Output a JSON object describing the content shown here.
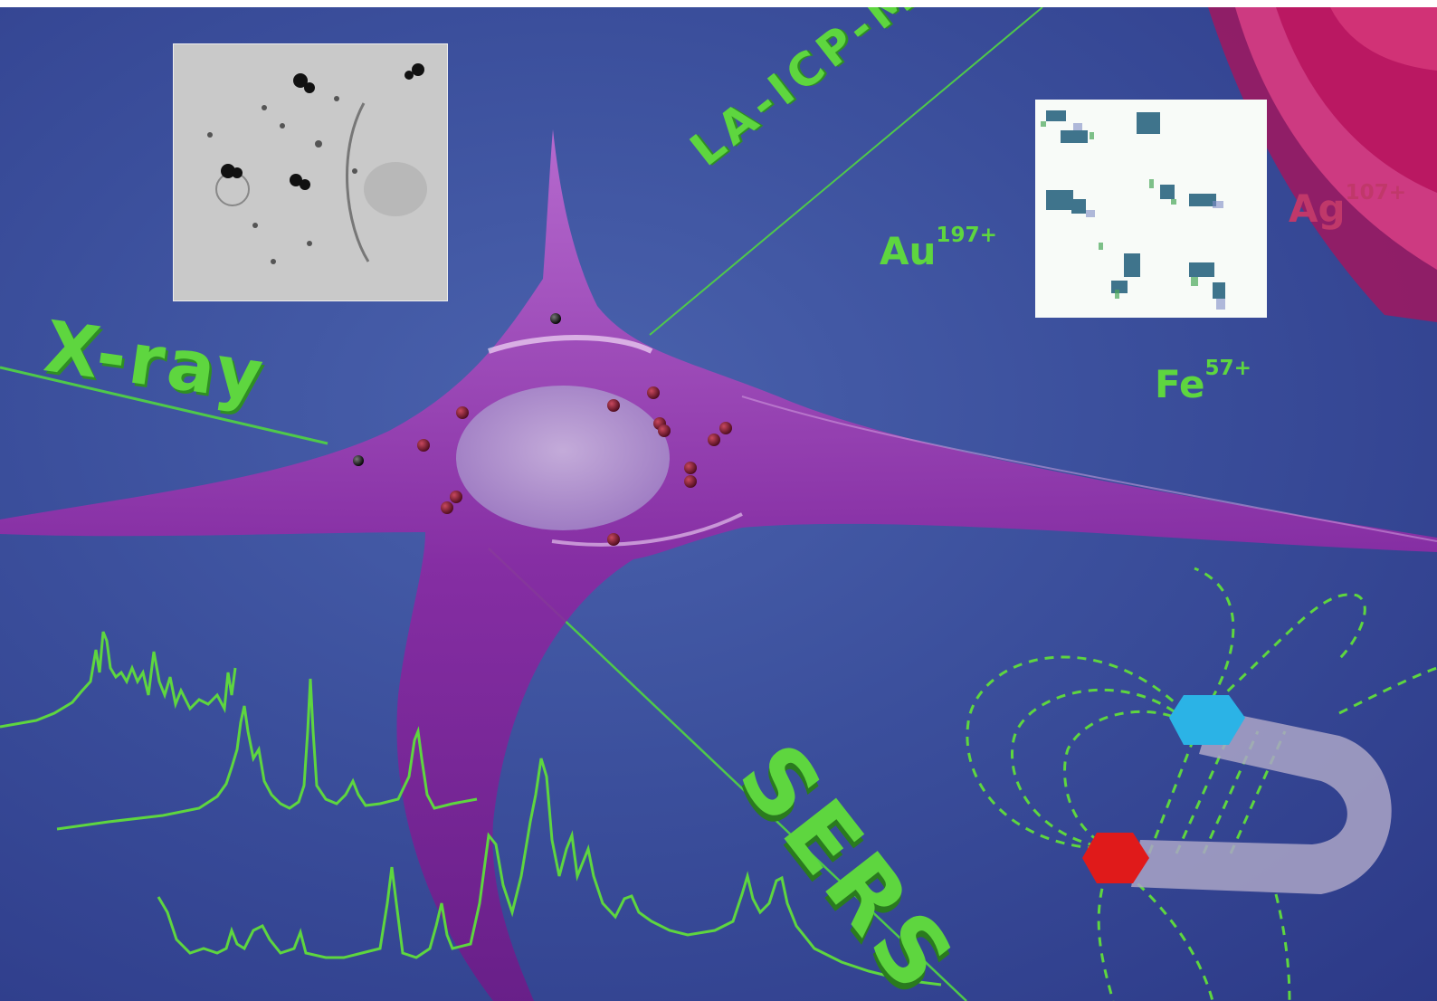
{
  "labels": {
    "xray": "X-ray",
    "laicpms": "LA-ICP-MS",
    "sers": "SERS",
    "au": {
      "element": "Au",
      "mass": "197+"
    },
    "fe": {
      "element": "Fe",
      "mass": "57+"
    },
    "ag": {
      "element": "Ag",
      "mass": "107+"
    }
  },
  "colors": {
    "background": "#3b4f9c",
    "label_green": "#5ed63f",
    "cell_purple": "#8a2aa0",
    "nucleus": "#b69ad0",
    "magnet_north": "#2bb3e6",
    "magnet_south": "#e01a1a",
    "magnet_body": "#a9a3c6",
    "ag_arcs": "#c0196b"
  },
  "illustration": {
    "subject": "cell-with-nanoparticles",
    "em_inset": "electron-microscopy-image",
    "map_inset": "elemental-map",
    "spectra": "raman-spectra",
    "magnet": "horseshoe-magnet"
  }
}
